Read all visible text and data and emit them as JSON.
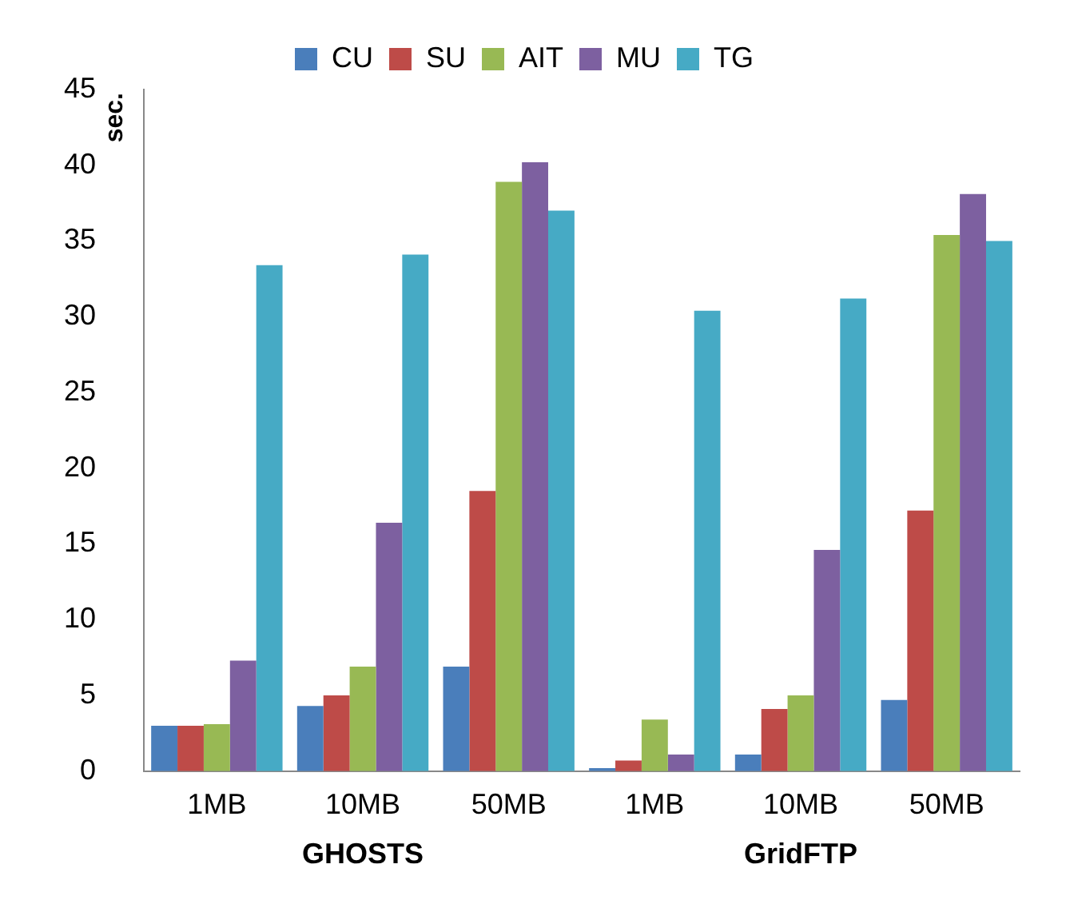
{
  "chart_data": {
    "type": "bar",
    "ylabel": "sec.",
    "categories": [
      "1MB",
      "10MB",
      "50MB",
      "1MB",
      "10MB",
      "50MB"
    ],
    "series": [
      {
        "name": "CU",
        "color": "#4a7ebb",
        "values": [
          3,
          4.3,
          6.9,
          0.2,
          1.1,
          4.7
        ]
      },
      {
        "name": "SU",
        "color": "#be4b48",
        "values": [
          3,
          5,
          18.5,
          0.7,
          4.1,
          17.2
        ]
      },
      {
        "name": "AIT",
        "color": "#98b954",
        "values": [
          3.1,
          6.9,
          38.9,
          3.4,
          5,
          35.4
        ]
      },
      {
        "name": "MU",
        "color": "#7d60a0",
        "values": [
          7.3,
          16.4,
          40.2,
          1.1,
          14.6,
          38.1
        ]
      },
      {
        "name": "TG",
        "color": "#46aac5",
        "values": [
          33.4,
          34.1,
          37,
          30.4,
          31.2,
          35
        ]
      }
    ],
    "ylim": [
      0,
      45
    ],
    "yticks": [
      0,
      5,
      10,
      15,
      20,
      25,
      30,
      35,
      40,
      45
    ],
    "grid": false,
    "legend": "top",
    "annotations": [
      "GHOSTS",
      "GridFTP"
    ]
  }
}
